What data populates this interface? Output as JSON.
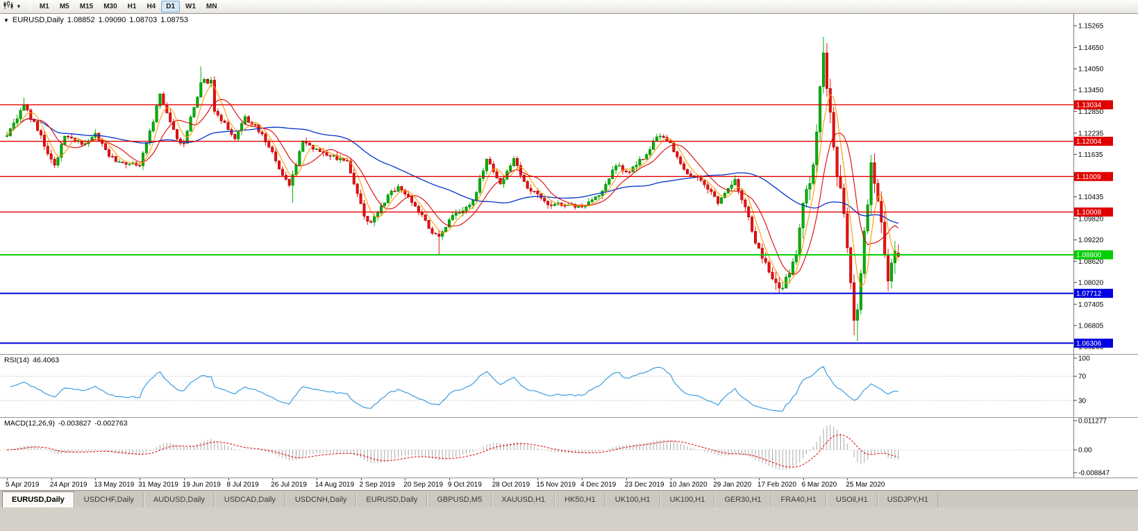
{
  "toolbar": {
    "timeframes": [
      "M1",
      "M5",
      "M15",
      "M30",
      "H1",
      "H4",
      "D1",
      "W1",
      "MN"
    ],
    "active_timeframe": "D1"
  },
  "chart": {
    "title_symbol": "EURUSD,Daily",
    "open": "1.08852",
    "high": "1.09090",
    "low": "1.08703",
    "close": "1.08753",
    "menu_arrow": "▼"
  },
  "indicators": {
    "rsi_name": "RSI(14)",
    "rsi_value": "46.4063",
    "macd_name": "MACD(12,26,9)",
    "macd_value_1": "-0.003827",
    "macd_value_2": "-0.002763",
    "rsi_axis": [
      "100",
      "70",
      "30"
    ],
    "macd_axis": [
      "0.011277",
      "0.00",
      "-0.008847"
    ]
  },
  "tabbar": {
    "active_index": 0,
    "tabs": [
      "EURUSD,Daily",
      "USDCHF,Daily",
      "AUDUSD,Daily",
      "USDCAD,Daily",
      "USDCNH,Daily",
      "EURUSD,Daily",
      "GBPUSD,M5",
      "XAUUSD,H1",
      "HK50,H1",
      "UK100,H1",
      "UK100,H1",
      "GER30,H1",
      "FRA40,H1",
      "USOil,H1",
      "USDJPY,H1"
    ]
  },
  "chart_data": {
    "type": "candlestick",
    "symbol": "EURUSD",
    "period": "Daily",
    "title": "EURUSD,Daily",
    "last_candle": {
      "o": 1.08852,
      "h": 1.0909,
      "l": 1.08703,
      "c": 1.08753
    },
    "y_ticks": [
      1.15265,
      1.1465,
      1.1405,
      1.1345,
      1.1285,
      1.12235,
      1.11635,
      1.11035,
      1.10435,
      1.0982,
      1.0922,
      1.0862,
      1.0802,
      1.07405,
      1.06805,
      1.06205
    ],
    "x_axis_labels": [
      "5 Apr 2019",
      "24 Apr 2019",
      "13 May 2019",
      "31 May 2019",
      "19 Jun 2019",
      "8 Jul 2019",
      "26 Jul 2019",
      "14 Aug 2019",
      "2 Sep 2019",
      "20 Sep 2019",
      "9 Oct 2019",
      "28 Oct 2019",
      "15 Nov 2019",
      "4 Dec 2019",
      "23 Dec 2019",
      "10 Jan 2020",
      "29 Jan 2020",
      "17 Feb 2020",
      "6 Mar 2020",
      "25 Mar 2020"
    ],
    "hlines": [
      {
        "price": 1.13034,
        "color": "#e00000",
        "width": 1.4
      },
      {
        "price": 1.12004,
        "color": "#e00000",
        "width": 1.4
      },
      {
        "price": 1.11009,
        "color": "#e00000",
        "width": 1.4
      },
      {
        "price": 1.10008,
        "color": "#e00000",
        "width": 1.4
      },
      {
        "price": 1.088,
        "color": "#00ce00",
        "width": 2
      },
      {
        "price": 1.07712,
        "color": "#0000e0",
        "width": 2
      },
      {
        "price": 1.06306,
        "color": "#0000e0",
        "width": 2
      }
    ],
    "rsi_levels": [
      70,
      30
    ],
    "rsi_axis_values": [
      100,
      70,
      30
    ],
    "price_range": {
      "top": 1.156,
      "bottom": 1.06
    },
    "candle_count": 263,
    "label_every": 13,
    "anchors": [
      [
        0,
        1.1216
      ],
      [
        3,
        1.1264
      ],
      [
        5,
        1.1302
      ],
      [
        9,
        1.1231
      ],
      [
        13,
        1.115
      ],
      [
        14,
        1.1133
      ],
      [
        17,
        1.1215
      ],
      [
        20,
        1.12
      ],
      [
        23,
        1.1194
      ],
      [
        26,
        1.1223
      ],
      [
        30,
        1.1158
      ],
      [
        34,
        1.114
      ],
      [
        39,
        1.1131
      ],
      [
        43,
        1.1255
      ],
      [
        45,
        1.1334
      ],
      [
        50,
        1.1207
      ],
      [
        52,
        1.1195
      ],
      [
        57,
        1.1366
      ],
      [
        60,
        1.1373
      ],
      [
        61,
        1.1285
      ],
      [
        67,
        1.1207
      ],
      [
        70,
        1.127
      ],
      [
        75,
        1.1221
      ],
      [
        79,
        1.1145
      ],
      [
        83,
        1.1076
      ],
      [
        87,
        1.1201
      ],
      [
        92,
        1.1171
      ],
      [
        100,
        1.1145
      ],
      [
        105,
        1.0989
      ],
      [
        107,
        1.0972
      ],
      [
        112,
        1.1049
      ],
      [
        115,
        1.1073
      ],
      [
        120,
        1.1017
      ],
      [
        125,
        1.0941
      ],
      [
        127,
        1.0932
      ],
      [
        130,
        1.0979
      ],
      [
        134,
        1.1004
      ],
      [
        137,
        1.1034
      ],
      [
        141,
        1.115
      ],
      [
        145,
        1.108
      ],
      [
        149,
        1.1152
      ],
      [
        153,
        1.1068
      ],
      [
        159,
        1.1021
      ],
      [
        165,
        1.1021
      ],
      [
        170,
        1.1018
      ],
      [
        175,
        1.106
      ],
      [
        179,
        1.1131
      ],
      [
        183,
        1.1114
      ],
      [
        189,
        1.1177
      ],
      [
        191,
        1.1213
      ],
      [
        195,
        1.1196
      ],
      [
        199,
        1.1121
      ],
      [
        204,
        1.109
      ],
      [
        209,
        1.1025
      ],
      [
        214,
        1.1093
      ],
      [
        219,
        1.0946
      ],
      [
        224,
        1.0831
      ],
      [
        228,
        1.0786
      ],
      [
        232,
        1.0881
      ],
      [
        234,
        1.1026
      ],
      [
        237,
        1.1134
      ],
      [
        240,
        1.145
      ],
      [
        243,
        1.1184
      ],
      [
        246,
        1.0996
      ],
      [
        249,
        1.0695
      ],
      [
        250,
        1.0725
      ],
      [
        254,
        1.114
      ],
      [
        256,
        1.1031
      ],
      [
        259,
        1.0806
      ],
      [
        261,
        1.0891
      ],
      [
        262,
        1.08753
      ]
    ],
    "spikes": [
      {
        "day": 5,
        "high": 1.1324
      },
      {
        "day": 57,
        "high": 1.1412
      },
      {
        "day": 84,
        "low": 1.1027
      },
      {
        "day": 127,
        "low": 1.0879
      },
      {
        "day": 228,
        "low": 1.0778
      },
      {
        "day": 240,
        "high": 1.1495
      },
      {
        "day": 249,
        "low": 1.0653
      },
      {
        "day": 250,
        "low": 1.0636
      },
      {
        "day": 254,
        "high": 1.1148
      }
    ],
    "vols": [
      0.0016,
      0.0028,
      0.0044
    ],
    "vol_breaks": [
      217,
      233
    ],
    "ma_periods": {
      "slow": 45,
      "mid": 10,
      "fast": 5
    },
    "rsi_period": 14,
    "macd_params": [
      12,
      26,
      9
    ],
    "colors": {
      "up": "#00b200",
      "up_border": "#007a00",
      "down": "#ef1010",
      "down_border": "#9c0000",
      "ma_slow": "#0033cc",
      "ma_mid": "#dd0000",
      "ma_fast": "#ff9900",
      "rsi": "#3b9ddd",
      "macd_hist": "#a8a8a8",
      "macd_signal": "#dd0000",
      "badge_text": "#ffffff"
    }
  }
}
